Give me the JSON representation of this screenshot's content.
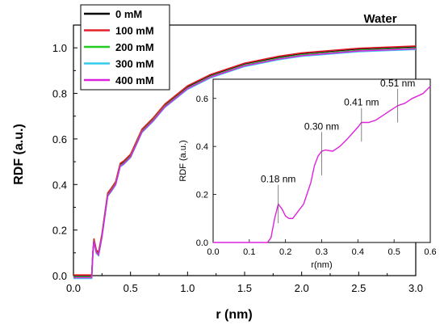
{
  "chart_data": {
    "type": "line",
    "title": "Water",
    "xlabel": "r (nm)",
    "ylabel": "RDF (a.u.)",
    "xlim": [
      0.0,
      3.0
    ],
    "ylim": [
      0.0,
      1.1
    ],
    "xticks": [
      "0.0",
      "0.5",
      "1.0",
      "1.5",
      "2.0",
      "2.5",
      "3.0"
    ],
    "yticks": [
      "0.0",
      "0.2",
      "0.4",
      "0.6",
      "0.8",
      "1.0"
    ],
    "legend_position": "top-left",
    "series": [
      {
        "name": "0 mM",
        "color": "#000000",
        "dy": 0.0,
        "x": [
          0.0,
          0.16,
          0.17,
          0.18,
          0.2,
          0.22,
          0.25,
          0.3,
          0.33,
          0.37,
          0.41,
          0.44,
          0.5,
          0.6,
          0.7,
          0.8,
          1.0,
          1.2,
          1.5,
          1.8,
          2.0,
          2.5,
          3.0
        ],
        "y": [
          0.0,
          0.0,
          0.1,
          0.16,
          0.11,
          0.1,
          0.18,
          0.36,
          0.38,
          0.41,
          0.49,
          0.5,
          0.53,
          0.64,
          0.69,
          0.75,
          0.83,
          0.88,
          0.93,
          0.96,
          0.975,
          0.995,
          1.005
        ]
      },
      {
        "name": "100 mM",
        "color": "#e0202a",
        "dy": 0.003,
        "x": [
          0.0,
          0.16,
          0.17,
          0.18,
          0.2,
          0.22,
          0.25,
          0.3,
          0.33,
          0.37,
          0.41,
          0.44,
          0.5,
          0.6,
          0.7,
          0.8,
          1.0,
          1.2,
          1.5,
          1.8,
          2.0,
          2.5,
          3.0
        ],
        "y": [
          0.0,
          0.0,
          0.1,
          0.16,
          0.11,
          0.1,
          0.18,
          0.36,
          0.38,
          0.41,
          0.49,
          0.5,
          0.53,
          0.64,
          0.69,
          0.75,
          0.83,
          0.88,
          0.93,
          0.96,
          0.975,
          0.995,
          1.005
        ]
      },
      {
        "name": "200 mM",
        "color": "#22cc22",
        "dy": -0.006,
        "x": [
          0.0,
          0.16,
          0.17,
          0.18,
          0.2,
          0.22,
          0.25,
          0.3,
          0.33,
          0.37,
          0.41,
          0.44,
          0.5,
          0.6,
          0.7,
          0.8,
          1.0,
          1.2,
          1.5,
          1.8,
          2.0,
          2.5,
          3.0
        ],
        "y": [
          0.0,
          0.0,
          0.1,
          0.16,
          0.11,
          0.1,
          0.18,
          0.36,
          0.38,
          0.41,
          0.49,
          0.5,
          0.53,
          0.64,
          0.69,
          0.75,
          0.83,
          0.88,
          0.93,
          0.96,
          0.975,
          0.995,
          1.005
        ]
      },
      {
        "name": "300 mM",
        "color": "#33ccee",
        "dy": -0.012,
        "x": [
          0.0,
          0.16,
          0.17,
          0.18,
          0.2,
          0.22,
          0.25,
          0.3,
          0.33,
          0.37,
          0.41,
          0.44,
          0.5,
          0.6,
          0.7,
          0.8,
          1.0,
          1.2,
          1.5,
          1.8,
          2.0,
          2.5,
          3.0
        ],
        "y": [
          0.0,
          0.0,
          0.1,
          0.16,
          0.11,
          0.1,
          0.18,
          0.36,
          0.38,
          0.41,
          0.49,
          0.5,
          0.53,
          0.64,
          0.69,
          0.75,
          0.83,
          0.88,
          0.93,
          0.96,
          0.975,
          0.995,
          1.005
        ]
      },
      {
        "name": "400 mM",
        "color": "#dd22dd",
        "dy": -0.009,
        "x": [
          0.0,
          0.16,
          0.17,
          0.18,
          0.2,
          0.22,
          0.25,
          0.3,
          0.33,
          0.37,
          0.41,
          0.44,
          0.5,
          0.6,
          0.7,
          0.8,
          1.0,
          1.2,
          1.5,
          1.8,
          2.0,
          2.5,
          3.0
        ],
        "y": [
          0.0,
          0.0,
          0.1,
          0.16,
          0.11,
          0.1,
          0.18,
          0.36,
          0.38,
          0.41,
          0.49,
          0.5,
          0.53,
          0.64,
          0.69,
          0.75,
          0.83,
          0.88,
          0.93,
          0.96,
          0.975,
          0.995,
          1.005
        ]
      }
    ],
    "inset": {
      "xlabel": "r(nm)",
      "ylabel": "RDF (a.u.)",
      "xlim": [
        0.0,
        0.6
      ],
      "ylim": [
        0.0,
        0.68
      ],
      "xticks": [
        "0.0",
        "0.1",
        "0.2",
        "0.3",
        "0.4",
        "0.5",
        "0.6"
      ],
      "yticks": [
        "0.0",
        "0.2",
        "0.4",
        "0.6"
      ],
      "line_color": "#dd22dd",
      "x": [
        0.0,
        0.15,
        0.16,
        0.17,
        0.18,
        0.19,
        0.2,
        0.21,
        0.22,
        0.25,
        0.27,
        0.28,
        0.29,
        0.3,
        0.31,
        0.33,
        0.35,
        0.37,
        0.4,
        0.41,
        0.43,
        0.45,
        0.47,
        0.49,
        0.51,
        0.53,
        0.55,
        0.58,
        0.6
      ],
      "y": [
        0.0,
        0.0,
        0.02,
        0.1,
        0.16,
        0.14,
        0.11,
        0.1,
        0.1,
        0.16,
        0.25,
        0.32,
        0.36,
        0.38,
        0.385,
        0.38,
        0.4,
        0.43,
        0.48,
        0.5,
        0.5,
        0.51,
        0.53,
        0.55,
        0.57,
        0.58,
        0.6,
        0.62,
        0.65
      ],
      "annotations": [
        {
          "text": "0.18 nm",
          "x": 0.18,
          "y_low": 0.08,
          "y_high": 0.24
        },
        {
          "text": "0.30 nm",
          "x": 0.3,
          "y_low": 0.28,
          "y_high": 0.46
        },
        {
          "text": "0.41 nm",
          "x": 0.41,
          "y_low": 0.42,
          "y_high": 0.56
        },
        {
          "text": "0.51 nm",
          "x": 0.51,
          "y_low": 0.5,
          "y_high": 0.64
        }
      ]
    }
  }
}
